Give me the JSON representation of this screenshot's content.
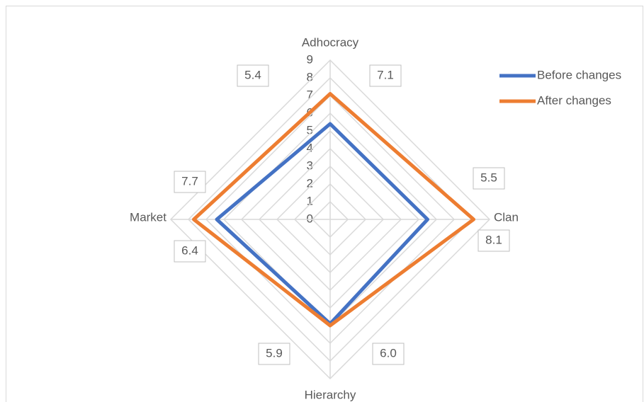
{
  "chart_data": {
    "type": "radar",
    "categories": [
      "Adhocracy",
      "Clan",
      "Hierarchy",
      "Market"
    ],
    "series": [
      {
        "name": "Before changes",
        "color": "#4472c4",
        "values": [
          5.4,
          5.5,
          5.9,
          6.4
        ],
        "value_labels": [
          "5.4",
          "5.5",
          "5.9",
          "6.4"
        ]
      },
      {
        "name": "After changes",
        "color": "#ed7d31",
        "values": [
          7.1,
          8.1,
          6.0,
          7.7
        ],
        "value_labels": [
          "7.1",
          "8.1",
          "6.0",
          "7.7"
        ]
      }
    ],
    "rlim": [
      0,
      9
    ],
    "rticks": [
      0,
      1,
      2,
      3,
      4,
      5,
      6,
      7,
      8,
      9
    ],
    "grid": true,
    "legend": "top-right"
  }
}
